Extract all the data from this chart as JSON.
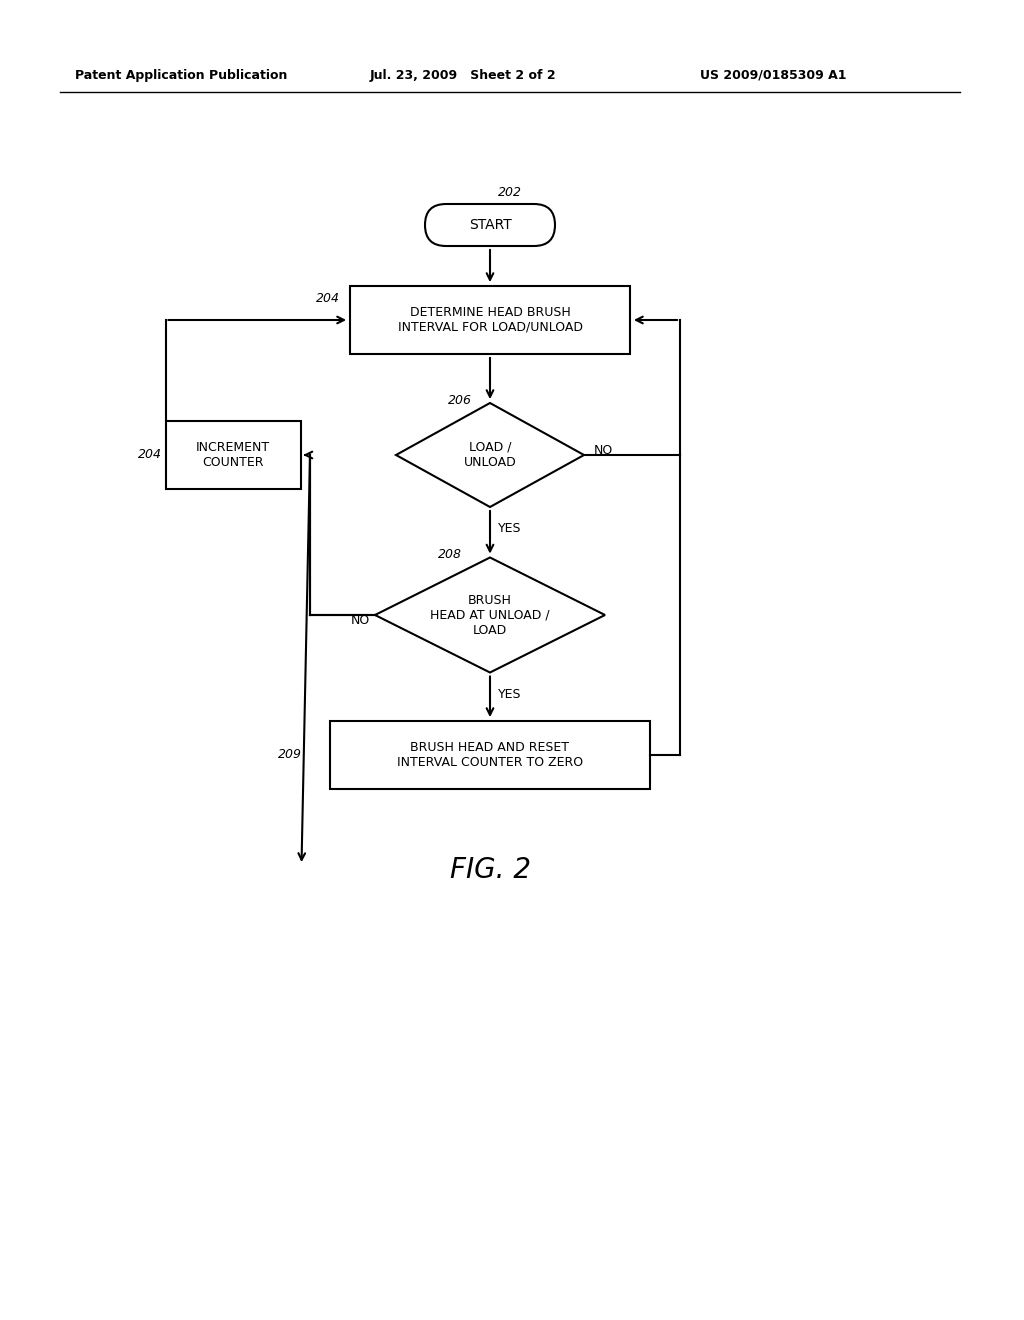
{
  "bg_color": "#ffffff",
  "header_left": "Patent Application Publication",
  "header_mid": "Jul. 23, 2009   Sheet 2 of 2",
  "header_right": "US 2009/0185309 A1",
  "fig_label": "FIG. 2",
  "start_label": "202",
  "box204_label": "204",
  "diamond206_label": "206",
  "diamond208_label": "208",
  "box209_label": "209",
  "incr_label": "204",
  "start_text": "START",
  "box204_text": "DETERMINE HEAD BRUSH\nINTERVAL FOR LOAD/UNLOAD",
  "diamond206_text": "LOAD /\nUNLOAD",
  "diamond208_text": "BRUSH\nHEAD AT UNLOAD /\nLOAD",
  "box209_text": "BRUSH HEAD AND RESET\nINTERVAL COUNTER TO ZERO",
  "incr_text": "INCREMENT\nCOUNTER",
  "yes_text": "YES",
  "no_text": "NO"
}
